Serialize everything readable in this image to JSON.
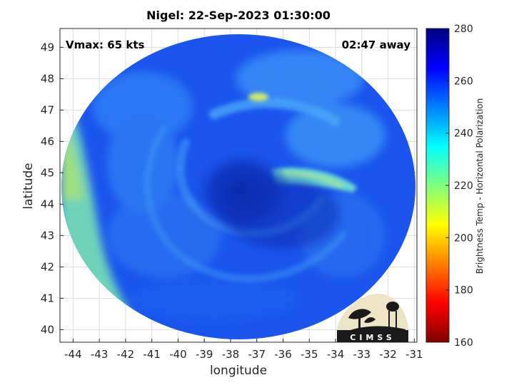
{
  "title": "Nigel: 22-Sep-2023 01:30:00",
  "vmax_label": "Vmax: 65 kts",
  "time_away_label": "02:47 away",
  "xlabel": "longitude",
  "ylabel": "latitude",
  "x_ticks": [
    "-44",
    "-43",
    "-42",
    "-41",
    "-40",
    "-39",
    "-38",
    "-37",
    "-36",
    "-35",
    "-34",
    "-33",
    "-32",
    "-31"
  ],
  "y_ticks": [
    "40",
    "41",
    "42",
    "43",
    "44",
    "45",
    "46",
    "47",
    "48",
    "49"
  ],
  "colorbar": {
    "label": "Brightness Temp - Horizontal Polarization",
    "ticks": [
      "160",
      "180",
      "200",
      "220",
      "240",
      "260",
      "280"
    ],
    "range": [
      160,
      280
    ],
    "colormap": "jet"
  },
  "logo": {
    "text": "CIMSS"
  },
  "map": {
    "lon_range": [
      -44.5,
      -30.9
    ],
    "lat_range": [
      39.6,
      49.6
    ],
    "center_lon": -37.7,
    "center_lat": 44.6,
    "background_temp_k": 258,
    "eye_temp_k": 270,
    "warm_band_west_temp_k": 228,
    "warm_arc_east_temp_k": 232,
    "grid": true
  }
}
